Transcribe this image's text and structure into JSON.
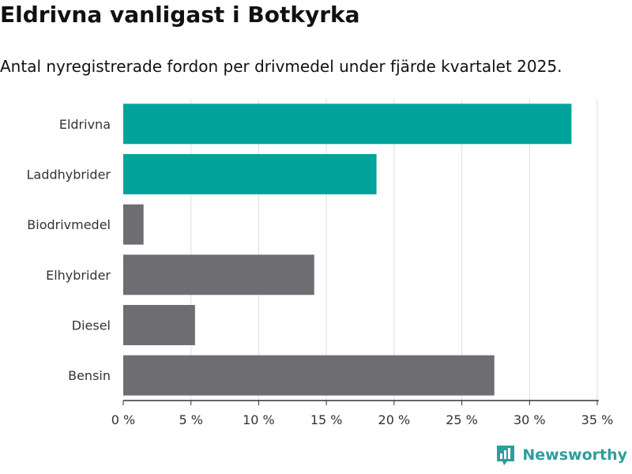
{
  "title": "Eldrivna vanligast i Botkyrka",
  "subtitle": "Antal nyregistrerade fordon per drivmedel under fjärde kvartalet 2025.",
  "brand": {
    "name": "Newsworthy",
    "logo_icon": "bar-chart-logo-icon",
    "color": "#2e9e9a"
  },
  "colors": {
    "highlight": "#00a39a",
    "default": "#6e6d72",
    "grid": "#dddddd",
    "axis": "#333333"
  },
  "chart_data": {
    "type": "bar",
    "orientation": "horizontal",
    "title": "Eldrivna vanligast i Botkyrka",
    "subtitle": "Antal nyregistrerade fordon per drivmedel under fjärde kvartalet 2025.",
    "xlabel": "",
    "ylabel": "",
    "unit": "%",
    "xlim": [
      0,
      35
    ],
    "x_ticks": [
      0,
      5,
      10,
      15,
      20,
      25,
      30,
      35
    ],
    "x_tick_labels": [
      "0 %",
      "5 %",
      "10 %",
      "15 %",
      "20 %",
      "25 %",
      "30 %",
      "35 %"
    ],
    "grid": true,
    "categories": [
      "Eldrivna",
      "Laddhybrider",
      "Biodrivmedel",
      "Elhybrider",
      "Diesel",
      "Bensin"
    ],
    "values": [
      33.1,
      18.7,
      1.5,
      14.1,
      5.3,
      27.4
    ],
    "highlighted": [
      true,
      true,
      false,
      false,
      false,
      false
    ]
  }
}
